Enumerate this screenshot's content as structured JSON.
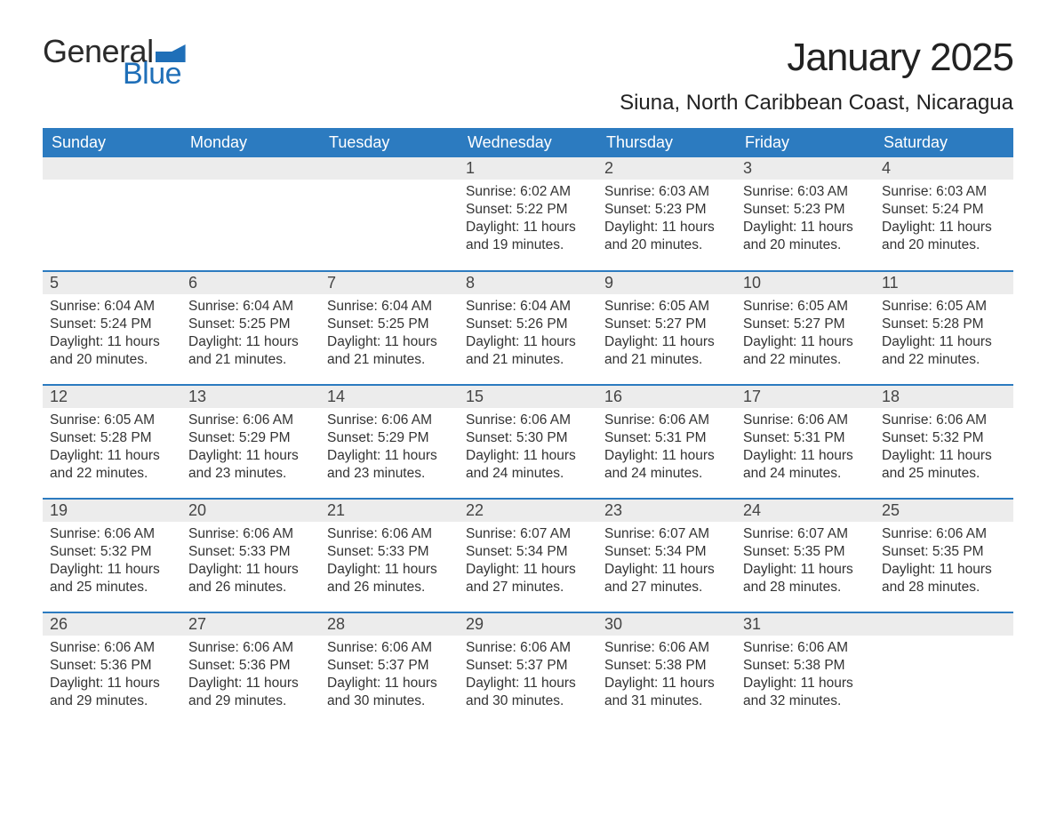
{
  "logo": {
    "text1": "General",
    "text2": "Blue",
    "flag_color": "#1f6fb8",
    "text1_color": "#2a2a2a",
    "text2_color": "#1f6fb8"
  },
  "title": "January 2025",
  "location": "Siuna, North Caribbean Coast, Nicaragua",
  "colors": {
    "header_bg": "#2c7bc0",
    "header_text": "#ffffff",
    "daynum_bg": "#ececec",
    "daynum_text": "#444444",
    "row_border": "#2c7bc0",
    "body_text": "#333333",
    "page_bg": "#ffffff"
  },
  "columns": [
    "Sunday",
    "Monday",
    "Tuesday",
    "Wednesday",
    "Thursday",
    "Friday",
    "Saturday"
  ],
  "weeks": [
    [
      null,
      null,
      null,
      {
        "n": "1",
        "sr": "Sunrise: 6:02 AM",
        "ss": "Sunset: 5:22 PM",
        "d1": "Daylight: 11 hours",
        "d2": "and 19 minutes."
      },
      {
        "n": "2",
        "sr": "Sunrise: 6:03 AM",
        "ss": "Sunset: 5:23 PM",
        "d1": "Daylight: 11 hours",
        "d2": "and 20 minutes."
      },
      {
        "n": "3",
        "sr": "Sunrise: 6:03 AM",
        "ss": "Sunset: 5:23 PM",
        "d1": "Daylight: 11 hours",
        "d2": "and 20 minutes."
      },
      {
        "n": "4",
        "sr": "Sunrise: 6:03 AM",
        "ss": "Sunset: 5:24 PM",
        "d1": "Daylight: 11 hours",
        "d2": "and 20 minutes."
      }
    ],
    [
      {
        "n": "5",
        "sr": "Sunrise: 6:04 AM",
        "ss": "Sunset: 5:24 PM",
        "d1": "Daylight: 11 hours",
        "d2": "and 20 minutes."
      },
      {
        "n": "6",
        "sr": "Sunrise: 6:04 AM",
        "ss": "Sunset: 5:25 PM",
        "d1": "Daylight: 11 hours",
        "d2": "and 21 minutes."
      },
      {
        "n": "7",
        "sr": "Sunrise: 6:04 AM",
        "ss": "Sunset: 5:25 PM",
        "d1": "Daylight: 11 hours",
        "d2": "and 21 minutes."
      },
      {
        "n": "8",
        "sr": "Sunrise: 6:04 AM",
        "ss": "Sunset: 5:26 PM",
        "d1": "Daylight: 11 hours",
        "d2": "and 21 minutes."
      },
      {
        "n": "9",
        "sr": "Sunrise: 6:05 AM",
        "ss": "Sunset: 5:27 PM",
        "d1": "Daylight: 11 hours",
        "d2": "and 21 minutes."
      },
      {
        "n": "10",
        "sr": "Sunrise: 6:05 AM",
        "ss": "Sunset: 5:27 PM",
        "d1": "Daylight: 11 hours",
        "d2": "and 22 minutes."
      },
      {
        "n": "11",
        "sr": "Sunrise: 6:05 AM",
        "ss": "Sunset: 5:28 PM",
        "d1": "Daylight: 11 hours",
        "d2": "and 22 minutes."
      }
    ],
    [
      {
        "n": "12",
        "sr": "Sunrise: 6:05 AM",
        "ss": "Sunset: 5:28 PM",
        "d1": "Daylight: 11 hours",
        "d2": "and 22 minutes."
      },
      {
        "n": "13",
        "sr": "Sunrise: 6:06 AM",
        "ss": "Sunset: 5:29 PM",
        "d1": "Daylight: 11 hours",
        "d2": "and 23 minutes."
      },
      {
        "n": "14",
        "sr": "Sunrise: 6:06 AM",
        "ss": "Sunset: 5:29 PM",
        "d1": "Daylight: 11 hours",
        "d2": "and 23 minutes."
      },
      {
        "n": "15",
        "sr": "Sunrise: 6:06 AM",
        "ss": "Sunset: 5:30 PM",
        "d1": "Daylight: 11 hours",
        "d2": "and 24 minutes."
      },
      {
        "n": "16",
        "sr": "Sunrise: 6:06 AM",
        "ss": "Sunset: 5:31 PM",
        "d1": "Daylight: 11 hours",
        "d2": "and 24 minutes."
      },
      {
        "n": "17",
        "sr": "Sunrise: 6:06 AM",
        "ss": "Sunset: 5:31 PM",
        "d1": "Daylight: 11 hours",
        "d2": "and 24 minutes."
      },
      {
        "n": "18",
        "sr": "Sunrise: 6:06 AM",
        "ss": "Sunset: 5:32 PM",
        "d1": "Daylight: 11 hours",
        "d2": "and 25 minutes."
      }
    ],
    [
      {
        "n": "19",
        "sr": "Sunrise: 6:06 AM",
        "ss": "Sunset: 5:32 PM",
        "d1": "Daylight: 11 hours",
        "d2": "and 25 minutes."
      },
      {
        "n": "20",
        "sr": "Sunrise: 6:06 AM",
        "ss": "Sunset: 5:33 PM",
        "d1": "Daylight: 11 hours",
        "d2": "and 26 minutes."
      },
      {
        "n": "21",
        "sr": "Sunrise: 6:06 AM",
        "ss": "Sunset: 5:33 PM",
        "d1": "Daylight: 11 hours",
        "d2": "and 26 minutes."
      },
      {
        "n": "22",
        "sr": "Sunrise: 6:07 AM",
        "ss": "Sunset: 5:34 PM",
        "d1": "Daylight: 11 hours",
        "d2": "and 27 minutes."
      },
      {
        "n": "23",
        "sr": "Sunrise: 6:07 AM",
        "ss": "Sunset: 5:34 PM",
        "d1": "Daylight: 11 hours",
        "d2": "and 27 minutes."
      },
      {
        "n": "24",
        "sr": "Sunrise: 6:07 AM",
        "ss": "Sunset: 5:35 PM",
        "d1": "Daylight: 11 hours",
        "d2": "and 28 minutes."
      },
      {
        "n": "25",
        "sr": "Sunrise: 6:06 AM",
        "ss": "Sunset: 5:35 PM",
        "d1": "Daylight: 11 hours",
        "d2": "and 28 minutes."
      }
    ],
    [
      {
        "n": "26",
        "sr": "Sunrise: 6:06 AM",
        "ss": "Sunset: 5:36 PM",
        "d1": "Daylight: 11 hours",
        "d2": "and 29 minutes."
      },
      {
        "n": "27",
        "sr": "Sunrise: 6:06 AM",
        "ss": "Sunset: 5:36 PM",
        "d1": "Daylight: 11 hours",
        "d2": "and 29 minutes."
      },
      {
        "n": "28",
        "sr": "Sunrise: 6:06 AM",
        "ss": "Sunset: 5:37 PM",
        "d1": "Daylight: 11 hours",
        "d2": "and 30 minutes."
      },
      {
        "n": "29",
        "sr": "Sunrise: 6:06 AM",
        "ss": "Sunset: 5:37 PM",
        "d1": "Daylight: 11 hours",
        "d2": "and 30 minutes."
      },
      {
        "n": "30",
        "sr": "Sunrise: 6:06 AM",
        "ss": "Sunset: 5:38 PM",
        "d1": "Daylight: 11 hours",
        "d2": "and 31 minutes."
      },
      {
        "n": "31",
        "sr": "Sunrise: 6:06 AM",
        "ss": "Sunset: 5:38 PM",
        "d1": "Daylight: 11 hours",
        "d2": "and 32 minutes."
      },
      null
    ]
  ]
}
